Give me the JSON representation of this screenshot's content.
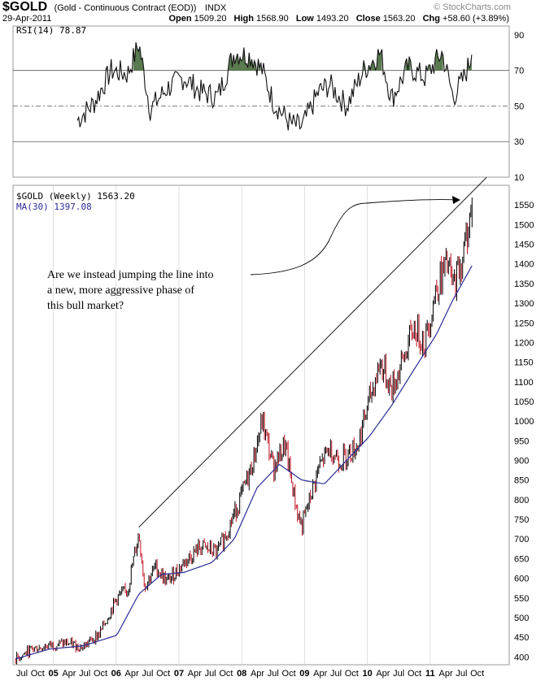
{
  "header": {
    "symbol": "$GOLD",
    "name": "(Gold - Continuous Contract (EOD))",
    "exchange": "INDX",
    "date": "29-Apr-2011",
    "open_label": "Open",
    "open": "1509.20",
    "high_label": "High",
    "high": "1568.90",
    "low_label": "Low",
    "low": "1493.20",
    "close_label": "Close",
    "close": "1563.20",
    "chg_label": "Chg",
    "chg": "+58.60 (+3.89%)",
    "watermark": "© StockCharts.com"
  },
  "chart_data": [
    {
      "type": "line",
      "panel": "RSI",
      "legend": "RSI(14) 78.87",
      "y_ticks": [
        10,
        30,
        50,
        70,
        90
      ],
      "ylim": [
        10,
        95
      ],
      "reference_lines": [
        30,
        50,
        70
      ],
      "x_dates": [
        "2005-06",
        "2005-09",
        "2005-12",
        "2006-03",
        "2006-05",
        "2006-07",
        "2006-10",
        "2007-01",
        "2007-04",
        "2007-07",
        "2007-10",
        "2008-01",
        "2008-03",
        "2008-05",
        "2008-08",
        "2008-10",
        "2009-01",
        "2009-03",
        "2009-06",
        "2009-09",
        "2009-12",
        "2010-02",
        "2010-05",
        "2010-08",
        "2010-11",
        "2011-01",
        "2011-03",
        "2011-04-29"
      ],
      "values": [
        42,
        52,
        70,
        68,
        85,
        48,
        60,
        66,
        58,
        55,
        80,
        78,
        70,
        52,
        40,
        38,
        58,
        62,
        50,
        70,
        80,
        54,
        72,
        66,
        80,
        55,
        66,
        78.87
      ]
    },
    {
      "type": "ohlc",
      "panel": "price",
      "legend": [
        {
          "name": "$GOLD (Weekly) 1563.20",
          "color": "#000000"
        },
        {
          "name": "MA(30) 1397.08",
          "color": "#2b2b9a"
        }
      ],
      "y_ticks": [
        400,
        450,
        500,
        550,
        600,
        650,
        700,
        750,
        800,
        850,
        900,
        950,
        1000,
        1050,
        1100,
        1150,
        1200,
        1250,
        1300,
        1350,
        1400,
        1450,
        1500,
        1550
      ],
      "ylim": [
        380,
        1600
      ],
      "x_tick_labels": [
        "Jul",
        "Oct",
        "05",
        "Apr",
        "Jul",
        "Oct",
        "06",
        "Apr",
        "Jul",
        "Oct",
        "07",
        "Apr",
        "Jul",
        "Oct",
        "08",
        "Apr",
        "Jul",
        "Oct",
        "09",
        "Apr",
        "Jul",
        "Oct",
        "10",
        "Apr",
        "Jul",
        "Oct",
        "11",
        "Apr",
        "Jul",
        "Oct"
      ],
      "x_start": "2004-07",
      "series": [
        {
          "name": "$GOLD (Weekly)",
          "dates": [
            "2004-07",
            "2004-10",
            "2005-01",
            "2005-04",
            "2005-07",
            "2005-10",
            "2006-01",
            "2006-03",
            "2006-05",
            "2006-06",
            "2006-08",
            "2006-10",
            "2007-01",
            "2007-04",
            "2007-07",
            "2007-09",
            "2007-11",
            "2008-01",
            "2008-03",
            "2008-05",
            "2008-07",
            "2008-09",
            "2008-10",
            "2009-01",
            "2009-03",
            "2009-05",
            "2009-08",
            "2009-10",
            "2009-12",
            "2010-02",
            "2010-04",
            "2010-06",
            "2010-08",
            "2010-10",
            "2010-12",
            "2011-01",
            "2011-03",
            "2011-04-29"
          ],
          "values": [
            395,
            420,
            430,
            435,
            425,
            460,
            550,
            570,
            715,
            580,
            630,
            590,
            640,
            680,
            665,
            730,
            800,
            880,
            1000,
            880,
            940,
            780,
            730,
            880,
            930,
            900,
            940,
            1050,
            1150,
            1080,
            1150,
            1240,
            1200,
            1340,
            1400,
            1340,
            1430,
            1563.2
          ]
        },
        {
          "name": "MA(30)",
          "dates": [
            "2004-07",
            "2005-01",
            "2005-07",
            "2006-01",
            "2006-05",
            "2006-09",
            "2007-01",
            "2007-06",
            "2007-10",
            "2008-02",
            "2008-06",
            "2008-10",
            "2009-02",
            "2009-06",
            "2009-10",
            "2010-02",
            "2010-06",
            "2010-10",
            "2011-01",
            "2011-04-29"
          ],
          "values": [
            395,
            420,
            428,
            455,
            560,
            610,
            615,
            640,
            700,
            830,
            890,
            850,
            840,
            900,
            960,
            1040,
            1130,
            1220,
            1310,
            1397.08
          ]
        }
      ],
      "trendline": {
        "from": [
          "2006-05",
          730
        ],
        "to": [
          "2011-07",
          1620
        ]
      },
      "annotation": "Are we instead jumping the line into a new, more aggressive phase of this bull market?",
      "annotation_lines": [
        "Are we instead jumping the line into",
        "a new, more aggressive phase of",
        "this bull market?"
      ]
    }
  ]
}
